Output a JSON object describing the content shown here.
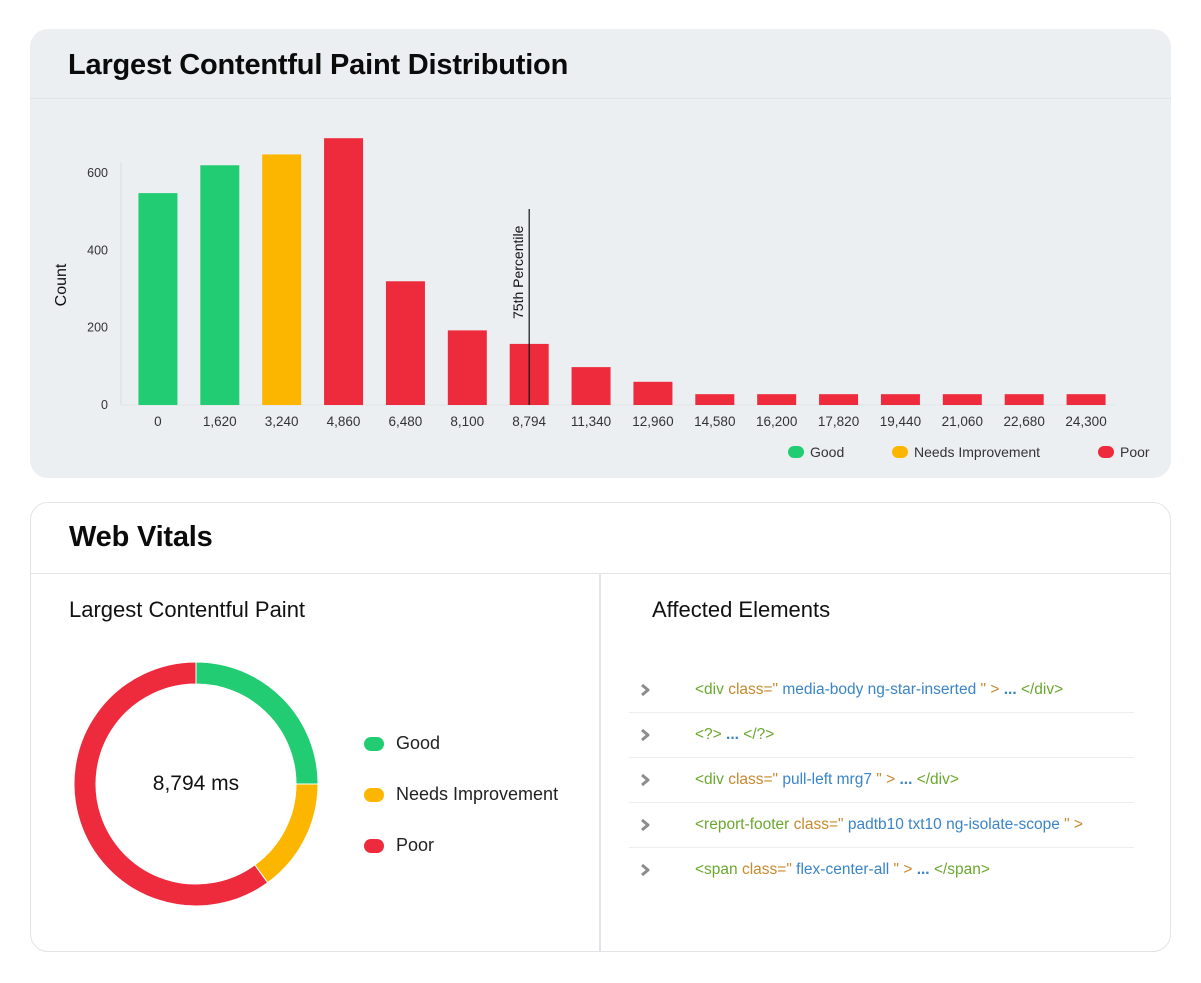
{
  "distribution": {
    "title": "Largest Contentful Paint Distribution",
    "chart_data": {
      "type": "bar",
      "title": "Largest Contentful Paint Distribution",
      "xlabel": "",
      "ylabel": "Count",
      "categories": [
        "0",
        "1,620",
        "3,240",
        "4,860",
        "6,480",
        "8,100",
        "8,794",
        "11,340",
        "12,960",
        "14,580",
        "16,200",
        "17,820",
        "19,440",
        "21,060",
        "22,680",
        "24,300"
      ],
      "values": [
        548,
        620,
        648,
        690,
        320,
        193,
        158,
        98,
        60,
        28,
        28,
        28,
        28,
        28,
        28,
        28
      ],
      "rating": [
        "Good",
        "Good",
        "Needs Improvement",
        "Poor",
        "Poor",
        "Poor",
        "Poor",
        "Poor",
        "Poor",
        "Poor",
        "Poor",
        "Poor",
        "Poor",
        "Poor",
        "Poor",
        "Poor"
      ],
      "yticks": [
        0,
        200,
        400,
        600
      ],
      "ylim": [
        0,
        700
      ],
      "grid": false,
      "annotation": {
        "label": "75th Percentile",
        "at_category": "8,794"
      },
      "legend": [
        {
          "name": "Good",
          "color": "#21cc72"
        },
        {
          "name": "Needs Improvement",
          "color": "#fdb600"
        },
        {
          "name": "Poor",
          "color": "#ee2b3c"
        }
      ],
      "legend_position": "bottom-right"
    }
  },
  "web_vitals": {
    "title": "Web Vitals",
    "lcp": {
      "title": "Largest Contentful Paint",
      "center_value": "8,794 ms",
      "chart_data": {
        "type": "pie",
        "categories": [
          "Good",
          "Needs Improvement",
          "Poor"
        ],
        "values": [
          25,
          15,
          60
        ],
        "colors": [
          "#21cc72",
          "#fdb600",
          "#ee2b3c"
        ]
      },
      "legend": [
        {
          "name": "Good",
          "color": "#21cc72"
        },
        {
          "name": "Needs Improvement",
          "color": "#fdb600"
        },
        {
          "name": "Poor",
          "color": "#ee2b3c"
        }
      ]
    },
    "affected": {
      "title": "Affected Elements",
      "rows": [
        {
          "open": "<div class=\"",
          "value": "media-body ng-star-inserted",
          "close_attr": "\" >",
          "dots": " ... ",
          "end": "</div>"
        },
        {
          "open": "<?>",
          "value": "",
          "close_attr": "",
          "dots": " ... ",
          "end": "</?>"
        },
        {
          "open": "<div class=\"",
          "value": "pull-left mrg7",
          "close_attr": "\" >",
          "dots": " ... ",
          "end": "</div>"
        },
        {
          "open": "<report-footer class=\"",
          "value": "padtb10 txt10 ng-isolate-scope",
          "close_attr": "\" >",
          "dots": "",
          "end": ""
        },
        {
          "open": "<span class=\"",
          "value": "flex-center-all",
          "close_attr": "\" >",
          "dots": " ... ",
          "end": "</span>"
        }
      ]
    }
  }
}
